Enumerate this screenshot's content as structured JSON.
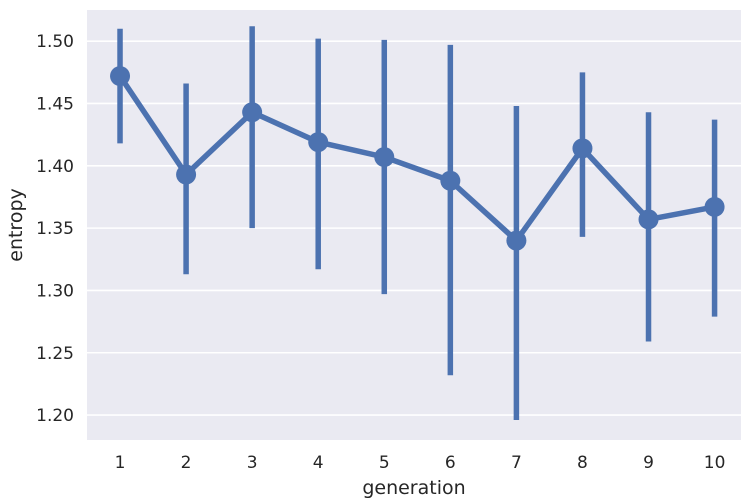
{
  "chart_data": {
    "type": "line",
    "xlabel": "generation",
    "ylabel": "entropy",
    "x": [
      1,
      2,
      3,
      4,
      5,
      6,
      7,
      8,
      9,
      10
    ],
    "ylim": [
      1.18,
      1.525
    ],
    "y_ticks": [
      1.2,
      1.25,
      1.3,
      1.35,
      1.4,
      1.45,
      1.5
    ],
    "y_tick_labels": [
      "1.20",
      "1.25",
      "1.30",
      "1.35",
      "1.40",
      "1.45",
      "1.50"
    ],
    "series": [
      {
        "values": [
          1.472,
          1.393,
          1.443,
          1.419,
          1.407,
          1.388,
          1.34,
          1.414,
          1.357,
          1.367
        ],
        "error_low": [
          1.418,
          1.313,
          1.35,
          1.317,
          1.297,
          1.232,
          1.196,
          1.343,
          1.259,
          1.279
        ],
        "error_high": [
          1.51,
          1.466,
          1.512,
          1.502,
          1.501,
          1.497,
          1.448,
          1.475,
          1.443,
          1.437
        ],
        "color": "#4c72b0"
      }
    ],
    "grid": true,
    "background": "#eaeaf2"
  }
}
